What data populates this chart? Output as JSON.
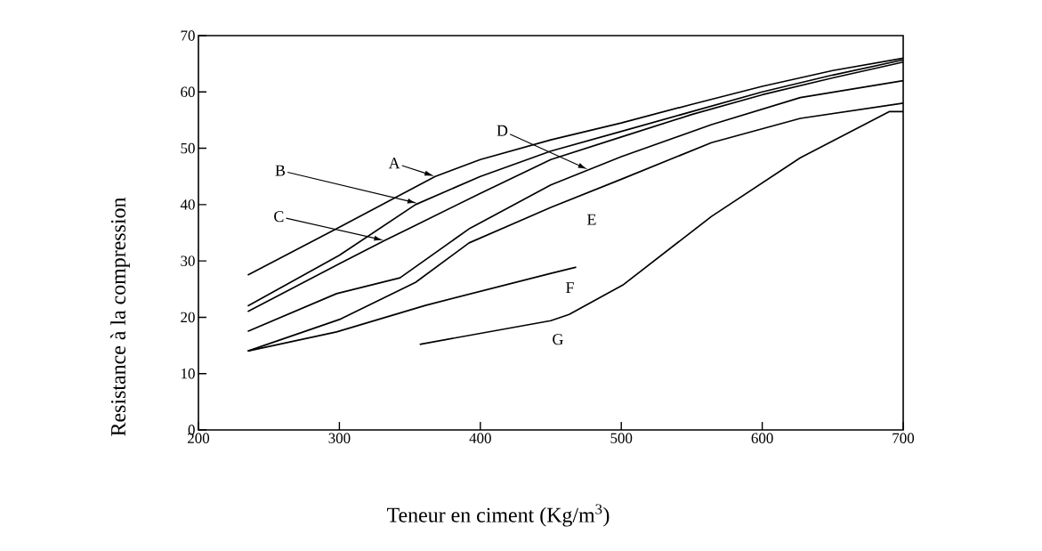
{
  "chart_data": {
    "type": "line",
    "xlabel": "Teneur en ciment (Kg/m$^{3}$)",
    "ylabel": "Resistance à la compression",
    "xlim": [
      200,
      700
    ],
    "ylim": [
      0,
      70
    ],
    "xticks": [
      200,
      300,
      400,
      500,
      600,
      700
    ],
    "yticks": [
      0,
      10,
      20,
      30,
      40,
      50,
      60,
      70
    ],
    "annotations": [
      "A",
      "B",
      "C",
      "D"
    ],
    "series": [
      {
        "color": "#000000",
        "x": [
          235,
          300,
          368,
          400,
          450,
          500,
          550,
          600,
          650,
          700
        ],
        "values": [
          27.5,
          36,
          45,
          48,
          51.5,
          54.5,
          57.8,
          61,
          63.8,
          66
        ]
      },
      {
        "color": "#000000",
        "x": [
          235,
          300,
          354,
          400,
          450,
          500,
          550,
          600,
          650,
          700
        ],
        "values": [
          22,
          31,
          40,
          45,
          49.5,
          53,
          56.5,
          60,
          63,
          65.7
        ]
      },
      {
        "color": "#000000",
        "x": [
          235,
          300,
          332,
          400,
          450,
          500,
          550,
          600,
          650,
          700
        ],
        "values": [
          21,
          29.5,
          33.6,
          42,
          48,
          52,
          56,
          59.5,
          62.5,
          65.3
        ]
      },
      {
        "color": "#000000",
        "x": [
          235,
          298,
          343,
          392,
          450,
          500,
          564,
          627,
          700
        ],
        "values": [
          17.5,
          24.2,
          27,
          35.7,
          43.5,
          48.5,
          54.2,
          59,
          62
        ]
      },
      {
        "name": "E",
        "color": "#000000",
        "x": [
          235,
          301,
          354,
          392,
          450,
          500,
          564,
          627,
          700
        ],
        "values": [
          14,
          19.7,
          26.2,
          33.2,
          39.5,
          44.5,
          51,
          55.3,
          58
        ]
      },
      {
        "name": "F",
        "color": "#000000",
        "x": [
          235,
          298,
          361,
          450,
          468
        ],
        "values": [
          14,
          17.4,
          22.1,
          27.8,
          28.9
        ]
      },
      {
        "name": "G",
        "color": "#000000",
        "x": [
          357,
          450,
          463,
          501,
          564,
          627,
          690,
          700
        ],
        "values": [
          15.2,
          19.4,
          20.5,
          25.7,
          37.9,
          48.3,
          56.5,
          56.5
        ]
      }
    ]
  }
}
